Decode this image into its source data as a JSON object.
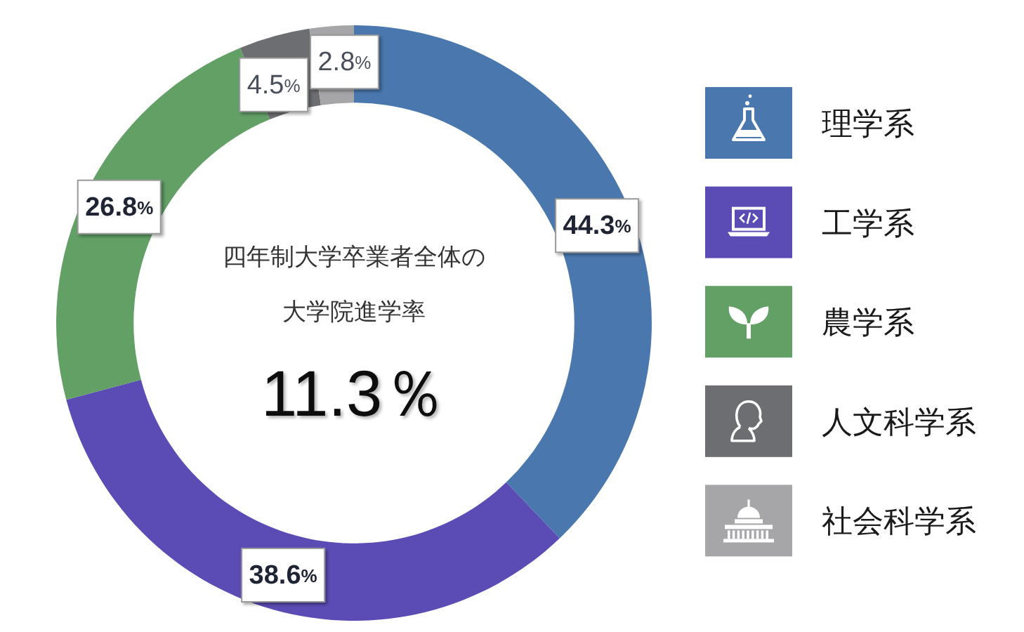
{
  "chart_data": {
    "type": "donut",
    "categories": [
      "理学系",
      "工学系",
      "農学系",
      "人文科学系",
      "社会科学系"
    ],
    "values": [
      44.3,
      38.6,
      26.8,
      4.5,
      2.8
    ],
    "colors": [
      "#4a78ae",
      "#5b4bb5",
      "#62a066",
      "#6d6e71",
      "#a6a6a9"
    ],
    "value_labels": [
      "44.3%",
      "38.6%",
      "26.8%",
      "4.5%",
      "2.8%"
    ],
    "annotations": [
      "四年制大学卒業者全体の",
      "大学院進学率",
      "11.3％"
    ],
    "legend": "right"
  }
}
